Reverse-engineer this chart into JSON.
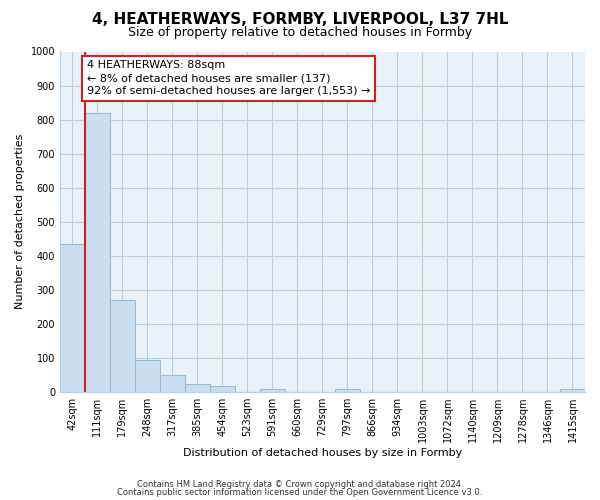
{
  "title": "4, HEATHERWAYS, FORMBY, LIVERPOOL, L37 7HL",
  "subtitle": "Size of property relative to detached houses in Formby",
  "xlabel": "Distribution of detached houses by size in Formby",
  "ylabel": "Number of detached properties",
  "bar_labels": [
    "42sqm",
    "111sqm",
    "179sqm",
    "248sqm",
    "317sqm",
    "385sqm",
    "454sqm",
    "523sqm",
    "591sqm",
    "660sqm",
    "729sqm",
    "797sqm",
    "866sqm",
    "934sqm",
    "1003sqm",
    "1072sqm",
    "1140sqm",
    "1209sqm",
    "1278sqm",
    "1346sqm",
    "1415sqm"
  ],
  "bar_values": [
    435,
    820,
    270,
    92,
    48,
    22,
    15,
    0,
    8,
    0,
    0,
    9,
    0,
    0,
    0,
    0,
    0,
    0,
    0,
    0,
    7
  ],
  "bar_color": "#ccdff0",
  "bar_edge_color": "#96bcd4",
  "vline_color": "#cc2222",
  "vline_position": 0.5,
  "annotation_text": "4 HEATHERWAYS: 88sqm\n← 8% of detached houses are smaller (137)\n92% of semi-detached houses are larger (1,553) →",
  "annotation_box_color": "#ffffff",
  "annotation_box_edge": "#cc2222",
  "ylim": [
    0,
    1000
  ],
  "yticks": [
    0,
    100,
    200,
    300,
    400,
    500,
    600,
    700,
    800,
    900,
    1000
  ],
  "footer1": "Contains HM Land Registry data © Crown copyright and database right 2024.",
  "footer2": "Contains public sector information licensed under the Open Government Licence v3.0.",
  "bg_color": "#ffffff",
  "plot_bg_color": "#eaf2f9",
  "grid_color": "#b8cfe0",
  "title_fontsize": 11,
  "subtitle_fontsize": 9,
  "ylabel_fontsize": 8,
  "xlabel_fontsize": 8,
  "tick_fontsize": 7,
  "annotation_fontsize": 8,
  "footer_fontsize": 6
}
